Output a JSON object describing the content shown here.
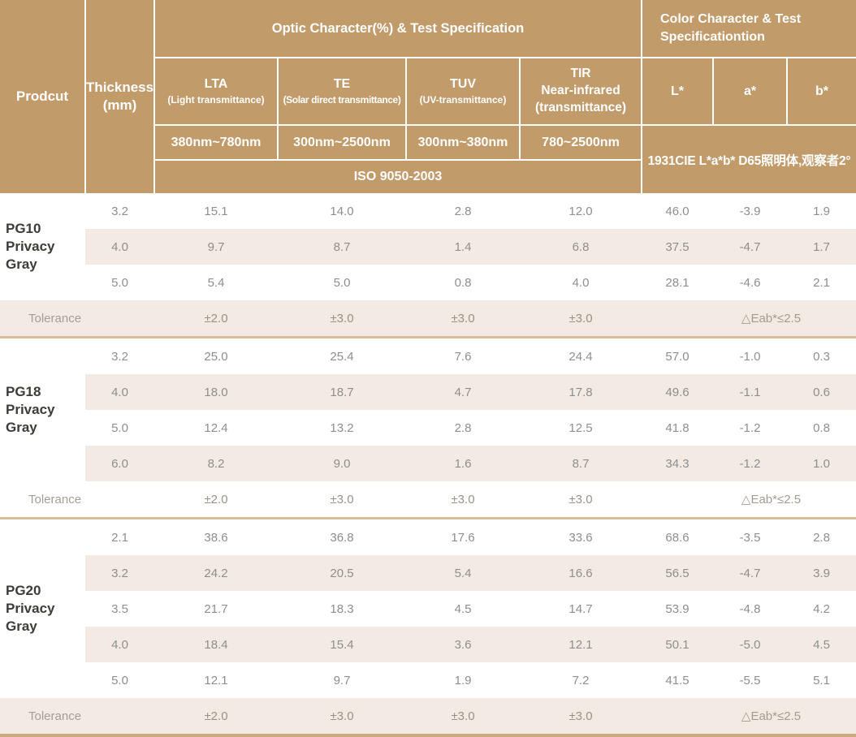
{
  "colors": {
    "header_bg": "#c29b6b",
    "row_shade": "#f3eae3",
    "group_divider": "#d8bd98",
    "bottom_border": "#c9ab80"
  },
  "header": {
    "product": "Prodcut",
    "thickness": "Thickness\n(mm)",
    "optic_title": "Optic Character(%) & Test Specification",
    "color_title": "Color Character & Test\nSpecificationtion",
    "optic_columns": [
      {
        "title": "LTA",
        "sub": "(Light transmittance)",
        "range": "380nm~780nm"
      },
      {
        "title": "TE",
        "sub": "(Solar direct transmittance)",
        "range": "300nm~2500nm"
      },
      {
        "title": "TUV",
        "sub": "(UV-transmittance)",
        "range": "300nm~380nm"
      },
      {
        "title": "TIR\nNear-infrared\n(transmittance)",
        "sub": "",
        "range": "780~2500nm"
      }
    ],
    "color_columns": [
      "L*",
      "a*",
      "b*"
    ],
    "iso_label": "ISO 9050-2003",
    "cie_label": "1931CIE L*a*b*  D65照明体,观察者2°"
  },
  "groups": [
    {
      "product": "PG10\nPrivacy Gray",
      "rows": [
        {
          "thickness": "3.2",
          "values": [
            "15.1",
            "14.0",
            "2.8",
            "12.0",
            "46.0",
            "-3.9",
            "1.9"
          ]
        },
        {
          "thickness": "4.0",
          "values": [
            "9.7",
            "8.7",
            "1.4",
            "6.8",
            "37.5",
            "-4.7",
            "1.7"
          ]
        },
        {
          "thickness": "5.0",
          "values": [
            "5.4",
            "5.0",
            "0.8",
            "4.0",
            "28.1",
            "-4.6",
            "2.1"
          ]
        }
      ],
      "tolerance": {
        "label": "Tolerance",
        "optic": [
          "±2.0",
          "±3.0",
          "±3.0",
          "±3.0"
        ],
        "color": "△Eab*≤2.5"
      }
    },
    {
      "product": "PG18\nPrivacy Gray",
      "rows": [
        {
          "thickness": "3.2",
          "values": [
            "25.0",
            "25.4",
            "7.6",
            "24.4",
            "57.0",
            "-1.0",
            "0.3"
          ]
        },
        {
          "thickness": "4.0",
          "values": [
            "18.0",
            "18.7",
            "4.7",
            "17.8",
            "49.6",
            "-1.1",
            "0.6"
          ]
        },
        {
          "thickness": "5.0",
          "values": [
            "12.4",
            "13.2",
            "2.8",
            "12.5",
            "41.8",
            "-1.2",
            "0.8"
          ]
        },
        {
          "thickness": "6.0",
          "values": [
            "8.2",
            "9.0",
            "1.6",
            "8.7",
            "34.3",
            "-1.2",
            "1.0"
          ]
        }
      ],
      "tolerance": {
        "label": "Tolerance",
        "optic": [
          "±2.0",
          "±3.0",
          "±3.0",
          "±3.0"
        ],
        "color": "△Eab*≤2.5"
      }
    },
    {
      "product": "PG20\nPrivacy Gray",
      "rows": [
        {
          "thickness": "2.1",
          "values": [
            "38.6",
            "36.8",
            "17.6",
            "33.6",
            "68.6",
            "-3.5",
            "2.8"
          ]
        },
        {
          "thickness": "3.2",
          "values": [
            "24.2",
            "20.5",
            "5.4",
            "16.6",
            "56.5",
            "-4.7",
            "3.9"
          ]
        },
        {
          "thickness": "3.5",
          "values": [
            "21.7",
            "18.3",
            "4.5",
            "14.7",
            "53.9",
            "-4.8",
            "4.2"
          ]
        },
        {
          "thickness": "4.0",
          "values": [
            "18.4",
            "15.4",
            "3.6",
            "12.1",
            "50.1",
            "-5.0",
            "4.5"
          ]
        },
        {
          "thickness": "5.0",
          "values": [
            "12.1",
            "9.7",
            "1.9",
            "7.2",
            "41.5",
            "-5.5",
            "5.1"
          ]
        }
      ],
      "tolerance": {
        "label": "Tolerance",
        "optic": [
          "±2.0",
          "±3.0",
          "±3.0",
          "±3.0"
        ],
        "color": "△Eab*≤2.5"
      }
    }
  ]
}
